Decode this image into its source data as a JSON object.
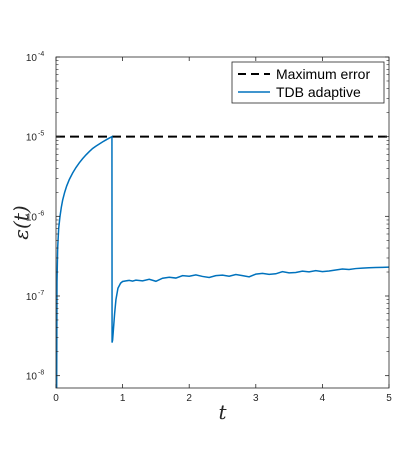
{
  "chart_data": {
    "type": "line",
    "xlabel": "t",
    "ylabel": "ε(t)",
    "xlim": [
      0,
      5
    ],
    "ylim": [
      7e-09,
      0.0001
    ],
    "yscale": "log",
    "grid": false,
    "legend_position": "top-right",
    "x_ticks": [
      {
        "value": 0,
        "label": "0"
      },
      {
        "value": 1,
        "label": "1"
      },
      {
        "value": 2,
        "label": "2"
      },
      {
        "value": 3,
        "label": "3"
      },
      {
        "value": 4,
        "label": "4"
      },
      {
        "value": 5,
        "label": "5"
      }
    ],
    "y_ticks": [
      {
        "value": 1e-08,
        "base": "10",
        "exp": "-8"
      },
      {
        "value": 1e-07,
        "base": "10",
        "exp": "-7"
      },
      {
        "value": 1e-06,
        "base": "10",
        "exp": "-6"
      },
      {
        "value": 1e-05,
        "base": "10",
        "exp": "-5"
      },
      {
        "value": 0.0001,
        "base": "10",
        "exp": "-4"
      }
    ],
    "series": [
      {
        "name": "Maximum error",
        "color": "#000000",
        "dash": "dashed",
        "x": [
          0,
          5
        ],
        "y": [
          1e-05,
          1e-05
        ]
      },
      {
        "name": "TDB adaptive",
        "color": "#0072BD",
        "dash": "solid",
        "x": [
          0.01,
          0.015,
          0.025,
          0.04,
          0.06,
          0.08,
          0.1,
          0.13,
          0.16,
          0.2,
          0.25,
          0.3,
          0.35,
          0.4,
          0.45,
          0.5,
          0.55,
          0.6,
          0.65,
          0.7,
          0.75,
          0.8,
          0.84,
          0.842,
          0.85,
          0.86,
          0.88,
          0.9,
          0.93,
          0.97,
          1.0,
          1.05,
          1.1,
          1.15,
          1.2,
          1.3,
          1.4,
          1.5,
          1.6,
          1.7,
          1.8,
          1.9,
          2.0,
          2.1,
          2.2,
          2.3,
          2.4,
          2.5,
          2.6,
          2.7,
          2.8,
          2.9,
          3.0,
          3.1,
          3.2,
          3.3,
          3.4,
          3.5,
          3.6,
          3.7,
          3.8,
          3.9,
          4.0,
          4.1,
          4.2,
          4.3,
          4.4,
          4.5,
          4.6,
          4.7,
          4.8,
          4.9,
          5.0
        ],
        "y": [
          7e-09,
          1.5e-07,
          4e-07,
          7e-07,
          1e-06,
          1.3e-06,
          1.6e-06,
          2e-06,
          2.4e-06,
          2.9e-06,
          3.5e-06,
          4.1e-06,
          4.7e-06,
          5.3e-06,
          5.9e-06,
          6.5e-06,
          7.1e-06,
          7.6e-06,
          8.1e-06,
          8.6e-06,
          9.1e-06,
          9.6e-06,
          1e-05,
          2.6e-08,
          2.8e-08,
          3.6e-08,
          6e-08,
          9e-08,
          1.25e-07,
          1.45e-07,
          1.52e-07,
          1.55e-07,
          1.57e-07,
          1.54e-07,
          1.58e-07,
          1.55e-07,
          1.62e-07,
          1.53e-07,
          1.67e-07,
          1.72e-07,
          1.68e-07,
          1.8e-07,
          1.77e-07,
          1.84e-07,
          1.76e-07,
          1.71e-07,
          1.8e-07,
          1.83e-07,
          1.77e-07,
          1.86e-07,
          1.8e-07,
          1.74e-07,
          1.88e-07,
          1.92e-07,
          1.87e-07,
          1.9e-07,
          2.02e-07,
          1.95e-07,
          1.97e-07,
          2.05e-07,
          2.01e-07,
          2.08e-07,
          2.02e-07,
          2.06e-07,
          2.12e-07,
          2.18e-07,
          2.15e-07,
          2.21e-07,
          2.24e-07,
          2.26e-07,
          2.28e-07,
          2.29e-07,
          2.3e-07
        ]
      }
    ]
  }
}
